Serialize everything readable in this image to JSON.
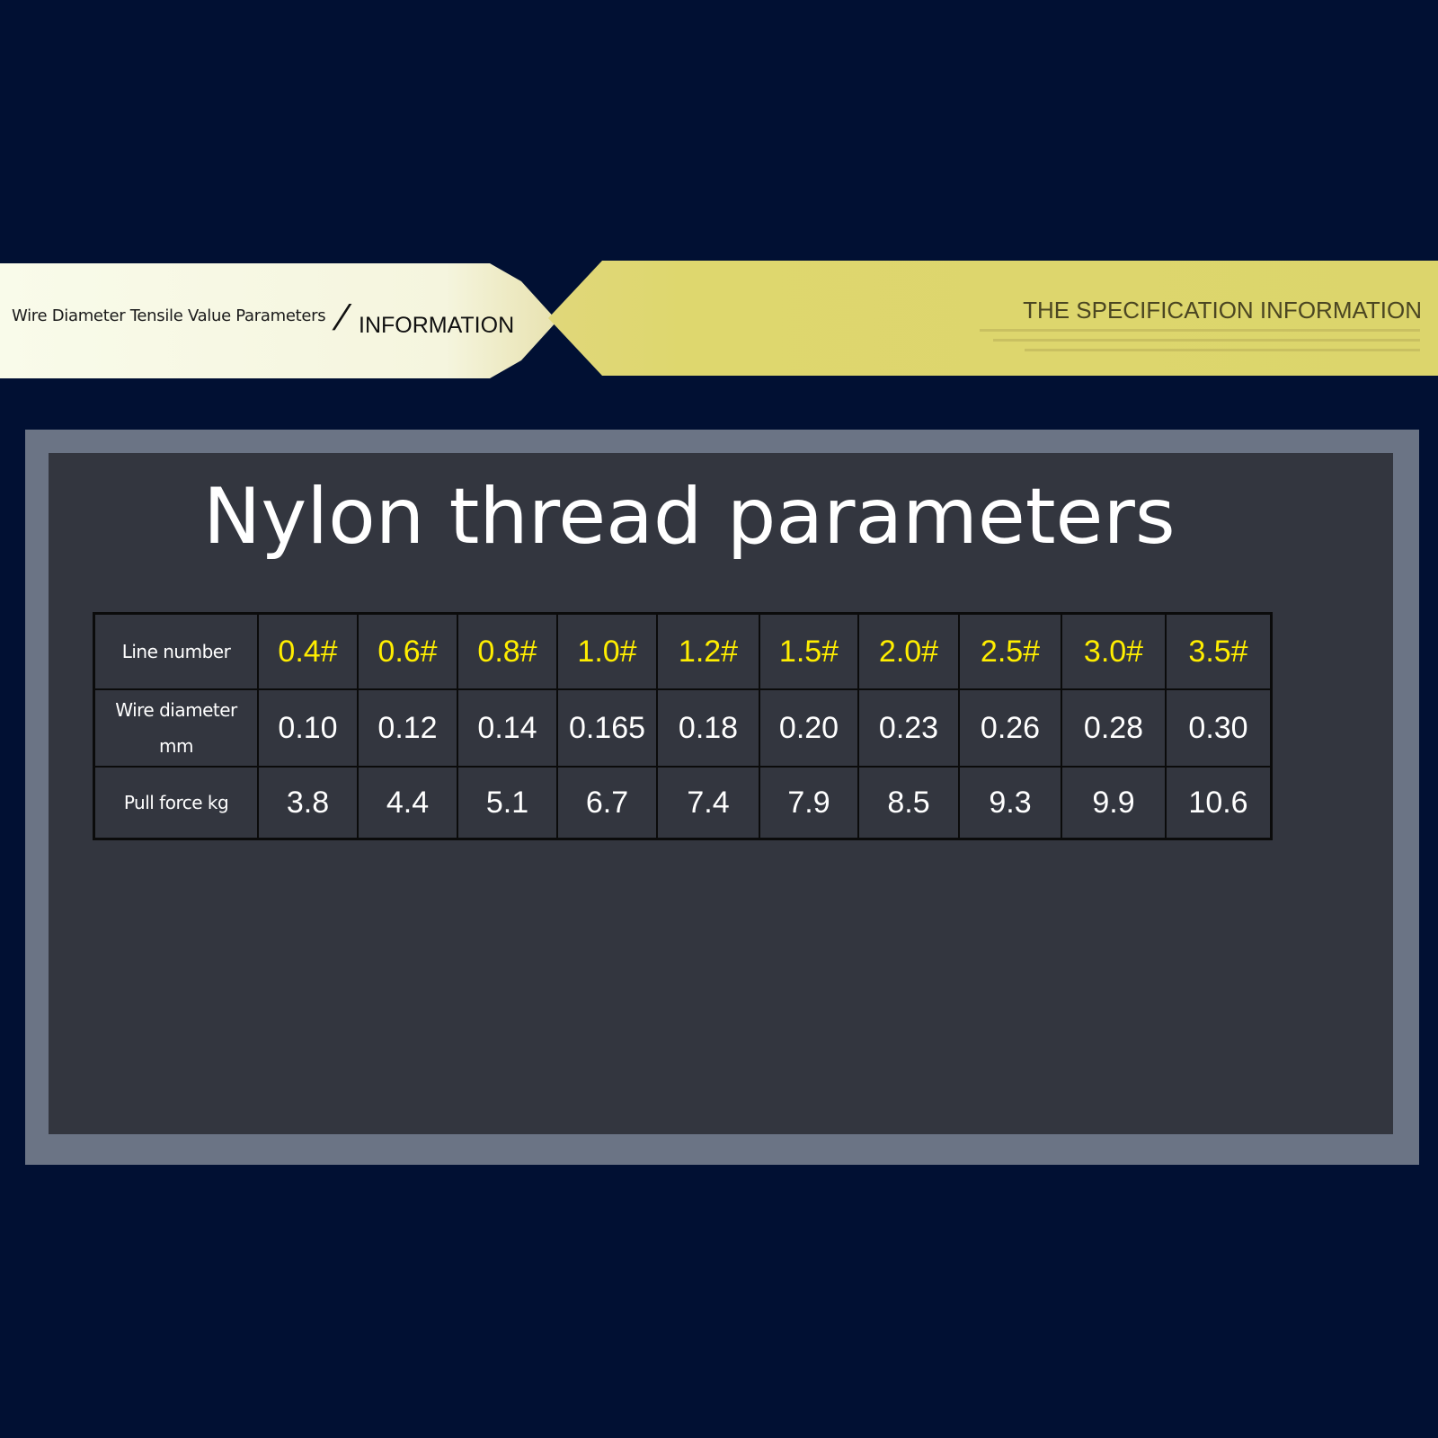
{
  "banner": {
    "left_text": "Wire Diameter Tensile Value Parameters",
    "slash": "/",
    "info": "INFORMATION",
    "right_title": "THE SPECIFICATION INFORMATION"
  },
  "title": "Nylon thread parameters",
  "table": {
    "columns": [
      {
        "label": "Line number",
        "values": [
          "0.4#",
          "0.6#",
          "0.8#",
          "1.0#",
          "1.2#",
          "1.5#",
          "2.0#",
          "2.5#",
          "3.0#",
          "3.5#"
        ]
      },
      {
        "label": "Wire diameter mm",
        "values": [
          "0.10",
          "0.12",
          "0.14",
          "0.165",
          "0.18",
          "0.20",
          "0.23",
          "0.26",
          "0.28",
          "0.30"
        ]
      },
      {
        "label": "Pull force kg",
        "values": [
          "3.8",
          "4.4",
          "5.1",
          "6.7",
          "7.4",
          "7.9",
          "8.5",
          "9.3",
          "9.9",
          "10.6"
        ]
      }
    ]
  },
  "colors": {
    "background": "#011033",
    "panel": "#33363f",
    "frame": "#6b7485",
    "line_number_text": "#ffee00",
    "ribbon_yellow": "#dcd56c",
    "ribbon_cream": "#f7f8e4"
  }
}
